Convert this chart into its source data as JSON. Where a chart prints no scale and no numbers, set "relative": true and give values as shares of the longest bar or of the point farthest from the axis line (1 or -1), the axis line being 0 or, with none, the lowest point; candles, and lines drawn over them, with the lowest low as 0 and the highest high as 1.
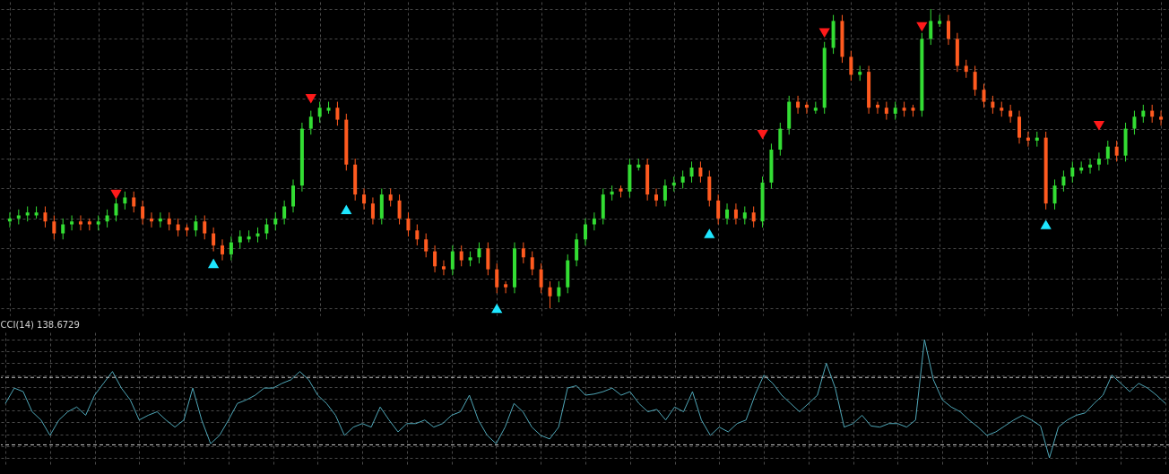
{
  "chart_data": [
    {
      "type": "candlestick",
      "relative": true,
      "grid": true,
      "colors": [
        "#33dd33",
        "#33dd33",
        "#33dd33",
        "#33dd33",
        "#ff5a1f",
        "#ff5a1f",
        "#33dd33",
        "#33dd33",
        "#ff5a1f",
        "#ff5a1f",
        "#33dd33",
        "#33dd33",
        "#33dd33",
        "#33dd33",
        "#ff5a1f",
        "#ff5a1f",
        "#ff5a1f",
        "#33dd33",
        "#ff5a1f",
        "#ff5a1f",
        "#ff5a1f",
        "#33dd33",
        "#ff5a1f",
        "#ff5a1f",
        "#ff5a1f",
        "#33dd33",
        "#33dd33",
        "#33dd33",
        "#33dd33",
        "#33dd33",
        "#33dd33",
        "#33dd33",
        "#33dd33",
        "#33dd33",
        "#33dd33",
        "#33dd33",
        "#33dd33",
        "#ff5a1f",
        "#ff5a1f",
        "#ff5a1f",
        "#ff5a1f",
        "#ff5a1f",
        "#33dd33",
        "#ff5a1f",
        "#ff5a1f",
        "#ff5a1f",
        "#ff5a1f",
        "#ff5a1f",
        "#ff5a1f",
        "#ff5a1f",
        "#33dd33",
        "#ff5a1f",
        "#33dd33",
        "#33dd33",
        "#ff5a1f",
        "#ff5a1f",
        "#ff5a1f",
        "#33dd33",
        "#ff5a1f",
        "#ff5a1f",
        "#ff5a1f",
        "#ff5a1f",
        "#33dd33",
        "#33dd33",
        "#33dd33",
        "#33dd33",
        "#33dd33",
        "#33dd33",
        "#33dd33",
        "#ff5a1f",
        "#33dd33",
        "#33dd33",
        "#ff5a1f",
        "#ff5a1f",
        "#33dd33",
        "#33dd33",
        "#33dd33",
        "#33dd33",
        "#ff5a1f",
        "#ff5a1f",
        "#ff5a1f",
        "#33dd33",
        "#ff5a1f",
        "#33dd33",
        "#ff5a1f",
        "#33dd33",
        "#33dd33",
        "#33dd33",
        "#33dd33",
        "#ff5a1f",
        "#ff5a1f",
        "#33dd33",
        "#33dd33",
        "#33dd33",
        "#ff5a1f",
        "#ff5a1f",
        "#33dd33",
        "#ff5a1f",
        "#ff5a1f",
        "#ff5a1f",
        "#33dd33",
        "#ff5a1f",
        "#ff5a1f",
        "#33dd33",
        "#33dd33",
        "#33dd33",
        "#ff5a1f",
        "#ff5a1f",
        "#ff5a1f",
        "#ff5a1f",
        "#ff5a1f",
        "#ff5a1f",
        "#ff5a1f",
        "#ff5a1f",
        "#ff5a1f",
        "#ff5a1f",
        "#33dd33",
        "#ff5a1f",
        "#33dd33",
        "#33dd33",
        "#33dd33",
        "#33dd33",
        "#33dd33",
        "#33dd33",
        "#33dd33",
        "#ff5a1f",
        "#33dd33",
        "#33dd33",
        "#33dd33",
        "#ff5a1f",
        "#ff5a1f"
      ],
      "categories": [
        null,
        null,
        null,
        null,
        null,
        null,
        null,
        null,
        null,
        null,
        null,
        null,
        null,
        null,
        null,
        null,
        null,
        null,
        null,
        null,
        null,
        null,
        null,
        null,
        null,
        null,
        null,
        null,
        null,
        null,
        null,
        null,
        null,
        null,
        null,
        null,
        null,
        null,
        null,
        null,
        null,
        null,
        null,
        null,
        null,
        null,
        null,
        null,
        null,
        null,
        null,
        null,
        null,
        null,
        null,
        null,
        null,
        null,
        null,
        null,
        null,
        null,
        null,
        null,
        null,
        null,
        null,
        null,
        null,
        null,
        null,
        null,
        null,
        null,
        null,
        null,
        null,
        null,
        null,
        null,
        null,
        null,
        null,
        null,
        null,
        null,
        null,
        null,
        null,
        null,
        null,
        null,
        null,
        null,
        null,
        null,
        null,
        null,
        null,
        null,
        null,
        null,
        null,
        null,
        null,
        null,
        null,
        null,
        null,
        null,
        null,
        null,
        null,
        null,
        null,
        null,
        null,
        null,
        null,
        null,
        null,
        null,
        null,
        null,
        null,
        null,
        null,
        null,
        null,
        null,
        null
      ],
      "ohlc": [
        [
          0.29,
          0.32,
          0.27,
          0.3
        ],
        [
          0.3,
          0.33,
          0.28,
          0.31
        ],
        [
          0.31,
          0.34,
          0.29,
          0.32
        ],
        [
          0.31,
          0.34,
          0.3,
          0.32
        ],
        [
          0.32,
          0.34,
          0.27,
          0.29
        ],
        [
          0.29,
          0.31,
          0.23,
          0.25
        ],
        [
          0.25,
          0.3,
          0.23,
          0.28
        ],
        [
          0.28,
          0.31,
          0.26,
          0.29
        ],
        [
          0.29,
          0.31,
          0.26,
          0.28
        ],
        [
          0.29,
          0.3,
          0.26,
          0.28
        ],
        [
          0.28,
          0.31,
          0.26,
          0.29
        ],
        [
          0.29,
          0.33,
          0.27,
          0.31
        ],
        [
          0.31,
          0.37,
          0.29,
          0.35
        ],
        [
          0.35,
          0.39,
          0.33,
          0.37
        ],
        [
          0.37,
          0.39,
          0.32,
          0.34
        ],
        [
          0.34,
          0.36,
          0.28,
          0.3
        ],
        [
          0.3,
          0.32,
          0.27,
          0.29
        ],
        [
          0.29,
          0.32,
          0.27,
          0.3
        ],
        [
          0.3,
          0.32,
          0.26,
          0.28
        ],
        [
          0.28,
          0.3,
          0.24,
          0.26
        ],
        [
          0.27,
          0.28,
          0.24,
          0.26
        ],
        [
          0.26,
          0.31,
          0.24,
          0.29
        ],
        [
          0.29,
          0.31,
          0.23,
          0.25
        ],
        [
          0.25,
          0.27,
          0.19,
          0.21
        ],
        [
          0.21,
          0.23,
          0.16,
          0.18
        ],
        [
          0.18,
          0.24,
          0.16,
          0.22
        ],
        [
          0.22,
          0.26,
          0.2,
          0.24
        ],
        [
          0.23,
          0.26,
          0.22,
          0.24
        ],
        [
          0.24,
          0.27,
          0.22,
          0.25
        ],
        [
          0.25,
          0.3,
          0.23,
          0.28
        ],
        [
          0.28,
          0.32,
          0.26,
          0.3
        ],
        [
          0.3,
          0.36,
          0.28,
          0.34
        ],
        [
          0.34,
          0.43,
          0.32,
          0.41
        ],
        [
          0.41,
          0.62,
          0.39,
          0.6
        ],
        [
          0.6,
          0.66,
          0.58,
          0.64
        ],
        [
          0.64,
          0.69,
          0.62,
          0.67
        ],
        [
          0.66,
          0.69,
          0.65,
          0.67
        ],
        [
          0.67,
          0.69,
          0.61,
          0.63
        ],
        [
          0.63,
          0.65,
          0.46,
          0.48
        ],
        [
          0.48,
          0.5,
          0.36,
          0.38
        ],
        [
          0.38,
          0.4,
          0.33,
          0.35
        ],
        [
          0.35,
          0.37,
          0.28,
          0.3
        ],
        [
          0.3,
          0.4,
          0.28,
          0.38
        ],
        [
          0.38,
          0.4,
          0.34,
          0.36
        ],
        [
          0.36,
          0.38,
          0.28,
          0.3
        ],
        [
          0.3,
          0.32,
          0.24,
          0.26
        ],
        [
          0.26,
          0.28,
          0.21,
          0.23
        ],
        [
          0.23,
          0.25,
          0.17,
          0.19
        ],
        [
          0.19,
          0.21,
          0.12,
          0.14
        ],
        [
          0.14,
          0.16,
          0.11,
          0.13
        ],
        [
          0.13,
          0.21,
          0.11,
          0.19
        ],
        [
          0.19,
          0.21,
          0.14,
          0.16
        ],
        [
          0.16,
          0.19,
          0.14,
          0.17
        ],
        [
          0.17,
          0.22,
          0.15,
          0.2
        ],
        [
          0.2,
          0.22,
          0.11,
          0.13
        ],
        [
          0.13,
          0.15,
          0.05,
          0.07
        ],
        [
          0.08,
          0.09,
          0.05,
          0.07
        ],
        [
          0.07,
          0.22,
          0.05,
          0.2
        ],
        [
          0.2,
          0.22,
          0.15,
          0.17
        ],
        [
          0.17,
          0.19,
          0.11,
          0.13
        ],
        [
          0.13,
          0.15,
          0.05,
          0.07
        ],
        [
          0.07,
          0.09,
          0.0,
          0.04
        ],
        [
          0.04,
          0.09,
          0.02,
          0.07
        ],
        [
          0.07,
          0.18,
          0.05,
          0.16
        ],
        [
          0.16,
          0.25,
          0.14,
          0.23
        ],
        [
          0.23,
          0.3,
          0.21,
          0.28
        ],
        [
          0.28,
          0.32,
          0.26,
          0.3
        ],
        [
          0.3,
          0.4,
          0.28,
          0.38
        ],
        [
          0.38,
          0.41,
          0.36,
          0.39
        ],
        [
          0.4,
          0.41,
          0.37,
          0.39
        ],
        [
          0.39,
          0.5,
          0.37,
          0.48
        ],
        [
          0.47,
          0.5,
          0.46,
          0.48
        ],
        [
          0.48,
          0.5,
          0.36,
          0.38
        ],
        [
          0.38,
          0.4,
          0.34,
          0.36
        ],
        [
          0.36,
          0.43,
          0.34,
          0.41
        ],
        [
          0.41,
          0.44,
          0.39,
          0.42
        ],
        [
          0.42,
          0.46,
          0.4,
          0.44
        ],
        [
          0.44,
          0.49,
          0.42,
          0.47
        ],
        [
          0.47,
          0.49,
          0.42,
          0.44
        ],
        [
          0.44,
          0.46,
          0.34,
          0.36
        ],
        [
          0.36,
          0.38,
          0.28,
          0.3
        ],
        [
          0.3,
          0.35,
          0.28,
          0.33
        ],
        [
          0.33,
          0.35,
          0.28,
          0.3
        ],
        [
          0.3,
          0.34,
          0.28,
          0.32
        ],
        [
          0.32,
          0.34,
          0.27,
          0.29
        ],
        [
          0.29,
          0.44,
          0.27,
          0.42
        ],
        [
          0.42,
          0.55,
          0.4,
          0.53
        ],
        [
          0.53,
          0.62,
          0.51,
          0.6
        ],
        [
          0.6,
          0.71,
          0.58,
          0.69
        ],
        [
          0.69,
          0.71,
          0.65,
          0.67
        ],
        [
          0.68,
          0.69,
          0.65,
          0.67
        ],
        [
          0.66,
          0.69,
          0.65,
          0.67
        ],
        [
          0.67,
          0.89,
          0.65,
          0.87
        ],
        [
          0.87,
          0.98,
          0.85,
          0.96
        ],
        [
          0.96,
          0.98,
          0.82,
          0.84
        ],
        [
          0.84,
          0.86,
          0.76,
          0.78
        ],
        [
          0.78,
          0.81,
          0.76,
          0.79
        ],
        [
          0.79,
          0.81,
          0.65,
          0.67
        ],
        [
          0.68,
          0.69,
          0.65,
          0.67
        ],
        [
          0.67,
          0.69,
          0.63,
          0.65
        ],
        [
          0.65,
          0.69,
          0.63,
          0.67
        ],
        [
          0.67,
          0.69,
          0.64,
          0.66
        ],
        [
          0.67,
          0.68,
          0.64,
          0.66
        ],
        [
          0.66,
          0.92,
          0.64,
          0.9
        ],
        [
          0.9,
          1.0,
          0.88,
          0.96
        ],
        [
          0.95,
          0.98,
          0.94,
          0.96
        ],
        [
          0.96,
          0.98,
          0.88,
          0.9
        ],
        [
          0.9,
          0.92,
          0.79,
          0.81
        ],
        [
          0.81,
          0.83,
          0.77,
          0.79
        ],
        [
          0.79,
          0.81,
          0.71,
          0.73
        ],
        [
          0.73,
          0.75,
          0.67,
          0.69
        ],
        [
          0.69,
          0.71,
          0.65,
          0.67
        ],
        [
          0.67,
          0.69,
          0.64,
          0.66
        ],
        [
          0.66,
          0.68,
          0.62,
          0.64
        ],
        [
          0.64,
          0.66,
          0.55,
          0.57
        ],
        [
          0.57,
          0.59,
          0.54,
          0.56
        ],
        [
          0.56,
          0.59,
          0.54,
          0.57
        ],
        [
          0.57,
          0.59,
          0.33,
          0.35
        ],
        [
          0.35,
          0.43,
          0.33,
          0.41
        ],
        [
          0.41,
          0.46,
          0.39,
          0.44
        ],
        [
          0.44,
          0.49,
          0.42,
          0.47
        ],
        [
          0.46,
          0.49,
          0.45,
          0.47
        ],
        [
          0.47,
          0.5,
          0.45,
          0.48
        ],
        [
          0.48,
          0.52,
          0.46,
          0.5
        ],
        [
          0.5,
          0.56,
          0.48,
          0.54
        ],
        [
          0.54,
          0.56,
          0.49,
          0.51
        ],
        [
          0.51,
          0.62,
          0.49,
          0.6
        ],
        [
          0.6,
          0.66,
          0.58,
          0.64
        ],
        [
          0.64,
          0.68,
          0.62,
          0.66
        ],
        [
          0.66,
          0.68,
          0.62,
          0.64
        ],
        [
          0.64,
          0.66,
          0.61,
          0.63
        ]
      ],
      "series": [
        {
          "type": "scatter",
          "color": "#ff1a1a",
          "marker": "triangle",
          "values": [
            null,
            null,
            null,
            null,
            null,
            null,
            null,
            null,
            null,
            null,
            null,
            null,
            0.38,
            null,
            null,
            null,
            null,
            null,
            null,
            null,
            null,
            null,
            null,
            null,
            null,
            null,
            null,
            null,
            null,
            null,
            null,
            null,
            null,
            null,
            0.7,
            null,
            null,
            null,
            null,
            null,
            null,
            null,
            null,
            null,
            null,
            null,
            null,
            null,
            null,
            null,
            null,
            null,
            null,
            null,
            null,
            null,
            null,
            null,
            null,
            null,
            null,
            null,
            null,
            null,
            null,
            null,
            null,
            null,
            null,
            null,
            null,
            null,
            null,
            null,
            null,
            null,
            null,
            null,
            null,
            null,
            null,
            null,
            null,
            null,
            null,
            0.58,
            null,
            null,
            null,
            null,
            null,
            null,
            0.92,
            null,
            null,
            null,
            null,
            null,
            null,
            null,
            null,
            null,
            null,
            0.94,
            null,
            null,
            null,
            null,
            null,
            null,
            null,
            null,
            null,
            null,
            null,
            null,
            null,
            null,
            null,
            null,
            null,
            null,
            null,
            0.61,
            null,
            null,
            null,
            null,
            null,
            null,
            null
          ]
        },
        {
          "type": "scatter",
          "color": "#1ee6ff",
          "marker": "triangle",
          "values": [
            null,
            null,
            null,
            null,
            null,
            null,
            null,
            null,
            null,
            null,
            null,
            null,
            null,
            null,
            null,
            null,
            null,
            null,
            null,
            null,
            null,
            null,
            null,
            0.15,
            null,
            null,
            null,
            null,
            null,
            null,
            null,
            null,
            null,
            null,
            null,
            null,
            null,
            null,
            0.33,
            null,
            null,
            null,
            null,
            null,
            null,
            null,
            null,
            null,
            null,
            null,
            null,
            null,
            null,
            null,
            null,
            0.0,
            null,
            null,
            null,
            null,
            null,
            null,
            null,
            null,
            null,
            null,
            null,
            null,
            null,
            null,
            null,
            null,
            null,
            null,
            null,
            null,
            null,
            null,
            null,
            0.25,
            null,
            null,
            null,
            null,
            null,
            null,
            null,
            null,
            null,
            null,
            null,
            null,
            null,
            null,
            null,
            null,
            null,
            null,
            null,
            null,
            null,
            null,
            null,
            null,
            null,
            null,
            null,
            null,
            null,
            null,
            null,
            null,
            null,
            null,
            null,
            null,
            null,
            0.28,
            null,
            null,
            null,
            null,
            null,
            null,
            null,
            null,
            null,
            null,
            null,
            null,
            null
          ]
        }
      ]
    },
    {
      "type": "line",
      "relative": true,
      "grid": true,
      "title": "CCI(14) 138.6729",
      "categories": [
        null,
        null,
        null,
        null,
        null,
        null,
        null,
        null,
        null,
        null,
        null,
        null,
        null,
        null,
        null,
        null,
        null,
        null,
        null,
        null,
        null,
        null,
        null,
        null,
        null,
        null,
        null,
        null,
        null,
        null,
        null,
        null,
        null,
        null,
        null,
        null,
        null,
        null,
        null,
        null,
        null,
        null,
        null,
        null,
        null,
        null,
        null,
        null,
        null,
        null,
        null,
        null,
        null,
        null,
        null,
        null,
        null,
        null,
        null,
        null,
        null,
        null,
        null,
        null,
        null,
        null,
        null,
        null,
        null,
        null,
        null,
        null,
        null,
        null,
        null,
        null,
        null,
        null,
        null,
        null,
        null,
        null,
        null,
        null,
        null,
        null,
        null,
        null,
        null,
        null,
        null,
        null,
        null,
        null,
        null,
        null,
        null,
        null,
        null,
        null,
        null,
        null,
        null,
        null,
        null,
        null,
        null,
        null,
        null,
        null,
        null,
        null,
        null,
        null,
        null,
        null,
        null,
        null,
        null,
        null,
        null,
        null,
        null,
        null,
        null,
        null,
        null,
        null,
        null,
        null,
        null
      ],
      "series": [
        {
          "color": "#4fa7b8",
          "values": [
            0.46,
            0.59,
            0.56,
            0.39,
            0.32,
            0.19,
            0.32,
            0.39,
            0.43,
            0.36,
            0.53,
            0.63,
            0.73,
            0.59,
            0.49,
            0.32,
            0.36,
            0.39,
            0.32,
            0.26,
            0.32,
            0.59,
            0.32,
            0.12,
            0.19,
            0.32,
            0.46,
            0.49,
            0.53,
            0.59,
            0.59,
            0.63,
            0.66,
            0.73,
            0.66,
            0.53,
            0.46,
            0.36,
            0.19,
            0.26,
            0.29,
            0.26,
            0.43,
            0.32,
            0.22,
            0.29,
            0.29,
            0.32,
            0.26,
            0.29,
            0.36,
            0.39,
            0.53,
            0.32,
            0.19,
            0.12,
            0.26,
            0.46,
            0.39,
            0.26,
            0.19,
            0.16,
            0.26,
            0.59,
            0.61,
            0.53,
            0.54,
            0.56,
            0.59,
            0.53,
            0.56,
            0.46,
            0.39,
            0.41,
            0.32,
            0.43,
            0.39,
            0.56,
            0.32,
            0.19,
            0.26,
            0.22,
            0.29,
            0.32,
            0.53,
            0.7,
            0.63,
            0.53,
            0.46,
            0.39,
            0.46,
            0.53,
            0.8,
            0.59,
            0.26,
            0.29,
            0.36,
            0.27,
            0.26,
            0.29,
            0.29,
            0.26,
            0.32,
            1.0,
            0.66,
            0.49,
            0.43,
            0.39,
            0.32,
            0.26,
            0.19,
            0.22,
            0.27,
            0.32,
            0.36,
            0.32,
            0.27,
            0.0,
            0.26,
            0.32,
            0.36,
            0.38,
            0.46,
            0.53,
            0.7,
            0.63,
            0.56,
            0.63,
            0.59,
            0.53,
            0.46
          ]
        }
      ],
      "ref_lines": [
        {
          "axis": "y",
          "value": 0.68,
          "color": "#c8c8c8",
          "line_style": "dashed"
        },
        {
          "axis": "y",
          "value": 0.11,
          "color": "#c8c8c8",
          "line_style": "dashed"
        }
      ]
    }
  ]
}
